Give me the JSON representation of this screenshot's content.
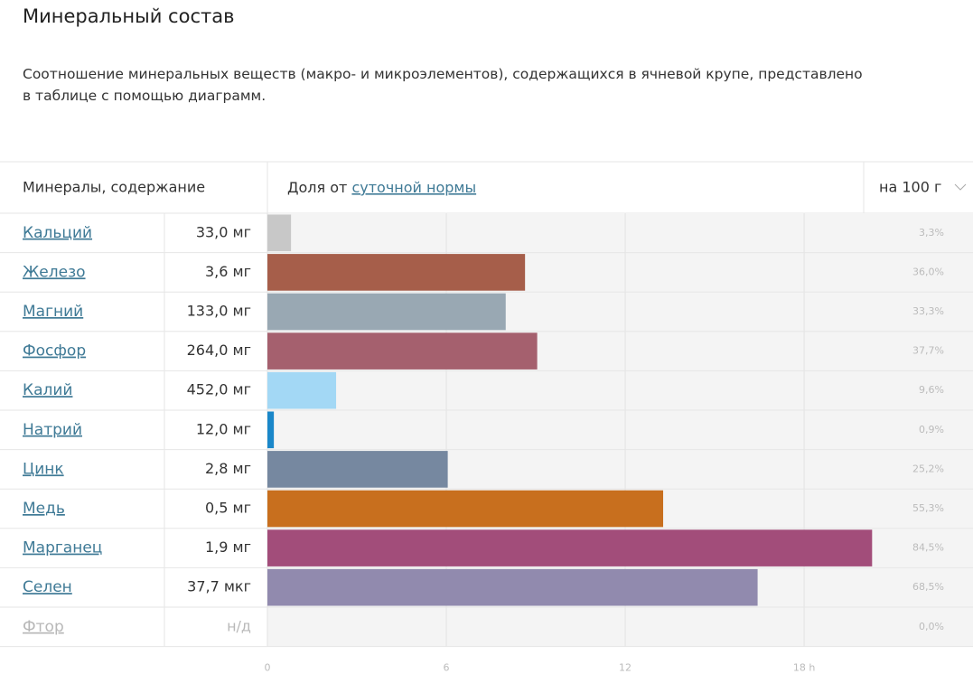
{
  "header": {
    "title": "Минеральный состав",
    "description": "Соотношение минеральных веществ (макро- и микроэлементов), содержащихся в ячневой крупе, представлено в таблице с помощью диаграмм."
  },
  "table": {
    "col_name": "Минералы, содержание",
    "col_share": "Доля от",
    "col_share_link": "суточной нормы",
    "col_unit": "на 100 г",
    "amounts": [
      "33,0 мг",
      "3,6 мг",
      "133,0 мг",
      "264,0 мг",
      "452,0 мг",
      "12,0 мг",
      "2,8 мг",
      "0,5 мг",
      "1,9 мг",
      "37,7 мкг",
      "н/д"
    ]
  },
  "chart_data": {
    "type": "bar",
    "orientation": "horizontal",
    "categories": [
      "Кальций",
      "Железо",
      "Магний",
      "Фосфор",
      "Калий",
      "Натрий",
      "Цинк",
      "Медь",
      "Марганец",
      "Селен",
      "Фтор"
    ],
    "values": [
      3.3,
      36.0,
      33.3,
      37.7,
      9.6,
      0.9,
      25.2,
      55.3,
      84.5,
      68.5,
      0.0
    ],
    "value_labels": [
      "3,3%",
      "36,0%",
      "33,3%",
      "37,7%",
      "9,6%",
      "0,9%",
      "25,2%",
      "55,3%",
      "84,5%",
      "68,5%",
      "0,0%"
    ],
    "colors": [
      "#c8c8c8",
      "#a65e4a",
      "#99a8b3",
      "#a5606e",
      "#a3d8f5",
      "#1a87c9",
      "#7688a0",
      "#c86f1e",
      "#a24d7a",
      "#918aae",
      "#b0b8d0"
    ],
    "xlim": [
      0,
      98.6
    ],
    "xticks": [
      {
        "value": 0,
        "label": "0"
      },
      {
        "value": 25,
        "label": "6"
      },
      {
        "value": 50,
        "label": "12"
      },
      {
        "value": 75,
        "label": "18 h"
      }
    ],
    "grid": true
  }
}
